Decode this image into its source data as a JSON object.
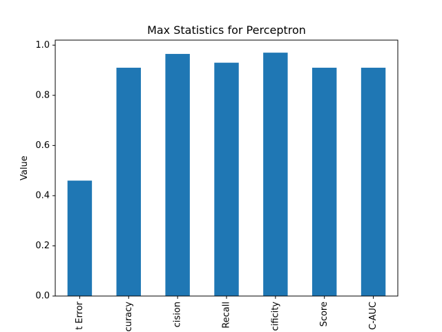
{
  "chart_data": {
    "type": "bar",
    "title": "Max Statistics for Perceptron",
    "xlabel": "",
    "ylabel": "Value",
    "categories": [
      "t Error",
      "curacy",
      "cision",
      "Recall",
      "cificity",
      "Score",
      "C-AUC"
    ],
    "values": [
      0.46,
      0.91,
      0.965,
      0.93,
      0.97,
      0.91,
      0.91
    ],
    "ylim": [
      0,
      1.02
    ],
    "yticks": [
      0.0,
      0.2,
      0.4,
      0.6,
      0.8,
      1.0
    ],
    "ytick_labels": [
      "0.0",
      "0.2",
      "0.4",
      "0.6",
      "0.8",
      "1.0"
    ],
    "bar_color": "#1f77b4",
    "grid": false,
    "legend": false
  }
}
